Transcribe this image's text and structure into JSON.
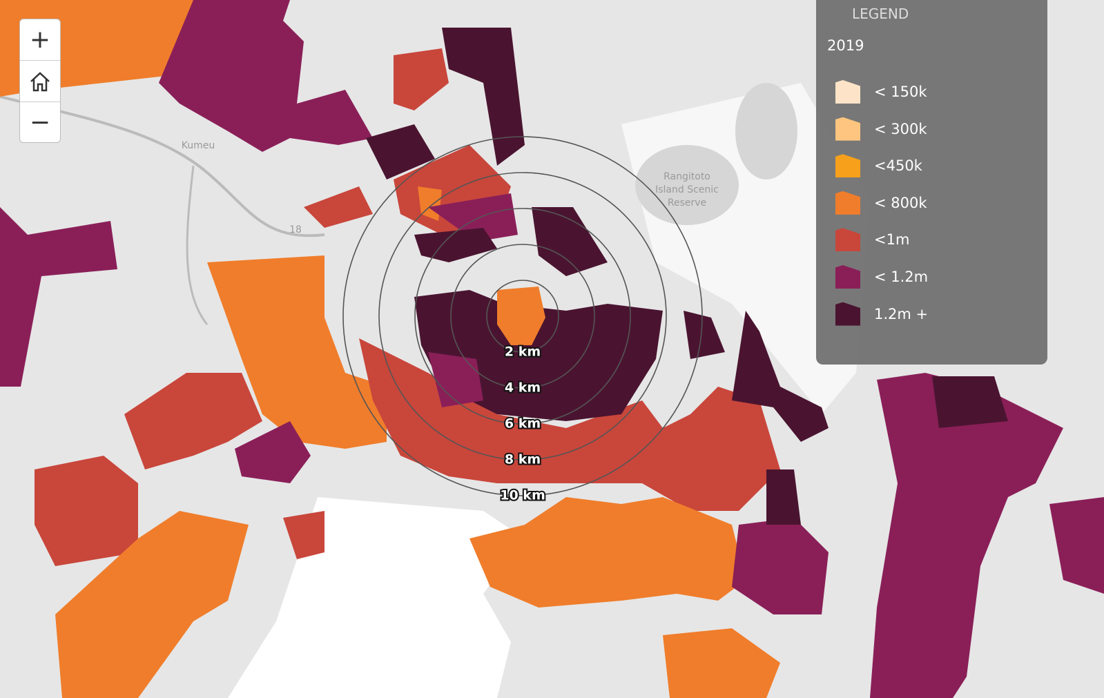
{
  "controls": {
    "zoom_in": "+",
    "zoom_out": "−"
  },
  "map_labels": [
    "Kumeu",
    "18",
    "Rangitoto",
    "Island Scenic",
    "Reserve"
  ],
  "rings": [
    "2 km",
    "4 km",
    "6 km",
    "8 km",
    "10 km"
  ],
  "legend": {
    "heading": "LEGEND",
    "year": "2019",
    "items": [
      {
        "label": "< 150k",
        "color": "#fde4c8"
      },
      {
        "label": "< 300k",
        "color": "#fdc57f"
      },
      {
        "label": "<450k",
        "color": "#f7a01c"
      },
      {
        "label": "< 800k",
        "color": "#f07d2b"
      },
      {
        "label": "<1m",
        "color": "#c9463b"
      },
      {
        "label": "< 1.2m",
        "color": "#8a1f58"
      },
      {
        "label": "1.2m +",
        "color": "#4a1430"
      }
    ]
  }
}
